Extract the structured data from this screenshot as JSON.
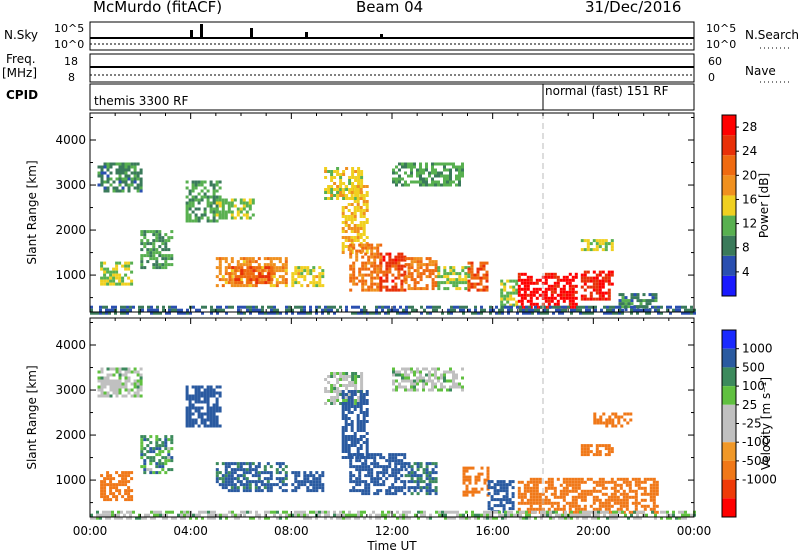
{
  "header": {
    "station": "McMurdo (fitACF)",
    "beam": "Beam 04",
    "date": "31/Dec/2016"
  },
  "strip": {
    "left_labels": {
      "nsky": "N.Sky",
      "freq": "Freq.",
      "freq_unit": "[MHz]",
      "cpid": "CPID"
    },
    "right_labels": {
      "nsearch": "N.Search",
      "nave": "Nave"
    },
    "nsky_ticks": [
      "10^5",
      "10^0"
    ],
    "freq_ticks": [
      "18",
      "8"
    ],
    "nsearch_ticks": [
      "10^5",
      "10^0"
    ],
    "nave_ticks": [
      "60",
      "0"
    ],
    "cpid_segments": [
      {
        "label": "themis 3300 RF",
        "start_hour": 0,
        "end_hour": 18
      },
      {
        "label": "normal (fast) 151 RF",
        "start_hour": 18,
        "end_hour": 24
      }
    ]
  },
  "colors": {
    "power": [
      "#1a1aff",
      "#2a4fb0",
      "#3a7a5a",
      "#58b050",
      "#f0d020",
      "#f0901e",
      "#ef6a10",
      "#e83008",
      "#ff0000"
    ],
    "velocity": [
      "#ff0000",
      "#ef3a08",
      "#f07818",
      "#f09828",
      "#c0c0c0",
      "#c0c0c0",
      "#60c040",
      "#3c8a5c",
      "#2a5aa0",
      "#1a2aff"
    ],
    "ground": "#a0a0a0"
  },
  "chart_data": [
    {
      "type": "heatmap",
      "panel": "power",
      "xlabel": "Time UT",
      "ylabel": "Slant Range [km]",
      "xlim": [
        0,
        24
      ],
      "ylim": [
        180,
        4600
      ],
      "x_ticks": [
        "00:00",
        "04:00",
        "08:00",
        "12:00",
        "16:00",
        "20:00",
        "00:00"
      ],
      "y_ticks": [
        1000,
        2000,
        3000,
        4000
      ],
      "colorbar": {
        "label": "Power [dB]",
        "ticks": [
          4,
          8,
          12,
          16,
          20,
          24,
          28
        ],
        "range": [
          0,
          30
        ]
      },
      "regions": [
        {
          "t0": 0.3,
          "t1": 2.0,
          "r0": 2900,
          "r1": 3500,
          "value": 8
        },
        {
          "t0": 0.4,
          "t1": 1.6,
          "r0": 800,
          "r1": 1300,
          "value": 13
        },
        {
          "t0": 2.0,
          "t1": 3.3,
          "r0": 1200,
          "r1": 2000,
          "value": 10
        },
        {
          "t0": 3.8,
          "t1": 5.2,
          "r0": 2200,
          "r1": 3100,
          "value": 10
        },
        {
          "t0": 5.0,
          "t1": 6.5,
          "r0": 2300,
          "r1": 2700,
          "value": 12
        },
        {
          "t0": 5.0,
          "t1": 7.8,
          "r0": 800,
          "r1": 1400,
          "value": 18
        },
        {
          "t0": 5.5,
          "t1": 7.2,
          "r0": 850,
          "r1": 1200,
          "value": 22
        },
        {
          "t0": 8.0,
          "t1": 9.3,
          "r0": 800,
          "r1": 1200,
          "value": 14
        },
        {
          "t0": 9.3,
          "t1": 10.8,
          "r0": 2700,
          "r1": 3400,
          "value": 14
        },
        {
          "t0": 10.0,
          "t1": 11.0,
          "r0": 1500,
          "r1": 3000,
          "value": 16
        },
        {
          "t0": 10.3,
          "t1": 11.5,
          "r0": 700,
          "r1": 1700,
          "value": 20
        },
        {
          "t0": 11.5,
          "t1": 12.5,
          "r0": 700,
          "r1": 1500,
          "value": 24
        },
        {
          "t0": 12.0,
          "t1": 14.8,
          "r0": 3000,
          "r1": 3500,
          "value": 10
        },
        {
          "t0": 12.5,
          "t1": 13.8,
          "r0": 700,
          "r1": 1400,
          "value": 20
        },
        {
          "t0": 13.8,
          "t1": 15.0,
          "r0": 700,
          "r1": 1200,
          "value": 12
        },
        {
          "t0": 15.0,
          "t1": 15.8,
          "r0": 700,
          "r1": 1300,
          "value": 22
        },
        {
          "t0": 16.3,
          "t1": 17.0,
          "r0": 300,
          "r1": 900,
          "value": 12
        },
        {
          "t0": 17.0,
          "t1": 19.3,
          "r0": 300,
          "r1": 1050,
          "value": 28
        },
        {
          "t0": 19.5,
          "t1": 20.8,
          "r0": 500,
          "r1": 1100,
          "value": 26
        },
        {
          "t0": 19.5,
          "t1": 20.7,
          "r0": 1550,
          "r1": 1800,
          "value": 13
        },
        {
          "t0": 21.0,
          "t1": 22.5,
          "r0": 250,
          "r1": 600,
          "value": 8
        },
        {
          "t0": 0.0,
          "t1": 24.0,
          "r0": 180,
          "r1": 320,
          "value": 6
        }
      ]
    },
    {
      "type": "heatmap",
      "panel": "velocity",
      "xlabel": "Time UT",
      "ylabel": "Slant Range [km]",
      "xlim": [
        0,
        24
      ],
      "ylim": [
        180,
        4600
      ],
      "x_ticks": [
        "00:00",
        "04:00",
        "08:00",
        "12:00",
        "16:00",
        "20:00",
        "00:00"
      ],
      "y_ticks": [
        1000,
        2000,
        3000,
        4000
      ],
      "colorbar": {
        "label": "Velocity [m s^-1]",
        "ticks": [
          1000,
          500,
          100,
          25,
          -25,
          -100,
          -500,
          -1000
        ]
      },
      "regions": [
        {
          "t0": 0.3,
          "t1": 2.0,
          "r0": 2900,
          "r1": 3500,
          "value": 0
        },
        {
          "t0": 0.4,
          "t1": 1.6,
          "r0": 600,
          "r1": 1200,
          "value": -200
        },
        {
          "t0": 2.0,
          "t1": 3.3,
          "r0": 1200,
          "r1": 2000,
          "value": 60
        },
        {
          "t0": 3.8,
          "t1": 5.2,
          "r0": 2200,
          "r1": 3100,
          "value": 150
        },
        {
          "t0": 5.0,
          "t1": 7.8,
          "r0": 800,
          "r1": 1400,
          "value": 120
        },
        {
          "t0": 8.0,
          "t1": 9.3,
          "r0": 800,
          "r1": 1200,
          "value": 200
        },
        {
          "t0": 9.3,
          "t1": 10.8,
          "r0": 2700,
          "r1": 3400,
          "value": 0
        },
        {
          "t0": 10.0,
          "t1": 11.0,
          "r0": 1500,
          "r1": 3000,
          "value": 400
        },
        {
          "t0": 10.3,
          "t1": 12.5,
          "r0": 700,
          "r1": 1600,
          "value": 150
        },
        {
          "t0": 12.0,
          "t1": 14.8,
          "r0": 3000,
          "r1": 3500,
          "value": 0
        },
        {
          "t0": 12.5,
          "t1": 13.8,
          "r0": 700,
          "r1": 1400,
          "value": 100
        },
        {
          "t0": 14.8,
          "t1": 15.8,
          "r0": 700,
          "r1": 1300,
          "value": -300
        },
        {
          "t0": 15.8,
          "t1": 16.8,
          "r0": 300,
          "r1": 1000,
          "value": 200
        },
        {
          "t0": 17.0,
          "t1": 22.5,
          "r0": 300,
          "r1": 1050,
          "value": -250
        },
        {
          "t0": 19.5,
          "t1": 20.7,
          "r0": 1550,
          "r1": 1800,
          "value": -200
        },
        {
          "t0": 20.0,
          "t1": 21.5,
          "r0": 2200,
          "r1": 2500,
          "value": -200
        },
        {
          "t0": 0.0,
          "t1": 24.0,
          "r0": 180,
          "r1": 320,
          "value": 0
        }
      ]
    }
  ]
}
